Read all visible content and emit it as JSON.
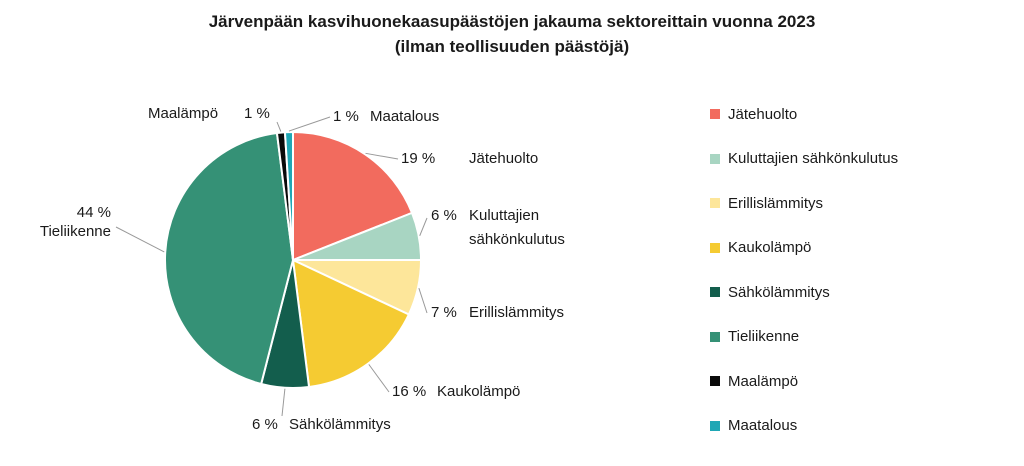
{
  "chart_data": {
    "type": "pie",
    "title": "Järvenpään kasvihuonekaasupäästöjen jakauma sektoreittain vuonna 2023",
    "subtitle": "(ilman teollisuuden päästöjä)",
    "slices": [
      {
        "name": "Jätehuolto",
        "value": 19,
        "label": "19 %",
        "color": "#f26b5e"
      },
      {
        "name": "Kuluttajien sähkönkulutus",
        "value": 6,
        "label": "6 %",
        "color": "#a8d5c2"
      },
      {
        "name": "Erillislämmitys",
        "value": 7,
        "label": "7 %",
        "color": "#fde69a"
      },
      {
        "name": "Kaukolämpö",
        "value": 16,
        "label": "16 %",
        "color": "#f5cb32"
      },
      {
        "name": "Sähkölämmitys",
        "value": 6,
        "label": "6 %",
        "color": "#135e4d"
      },
      {
        "name": "Tieliikenne",
        "value": 44,
        "label": "44 %",
        "color": "#359176"
      },
      {
        "name": "Maalämpö",
        "value": 1,
        "label": "1 %",
        "color": "#0a0a0a"
      },
      {
        "name": "Maatalous",
        "value": 1,
        "label": "1 %",
        "color": "#1fa7b5"
      }
    ],
    "legend": [
      "Jätehuolto",
      "Kuluttajien sähkönkulutus",
      "Erillislämmitys",
      "Kaukolämpö",
      "Sähkölämmitys",
      "Tieliikenne",
      "Maalämpö",
      "Maatalous"
    ],
    "legend_position": "right"
  }
}
